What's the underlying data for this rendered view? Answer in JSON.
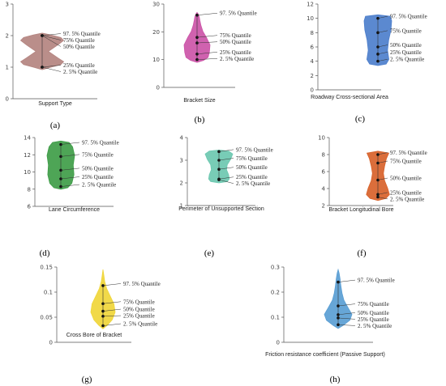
{
  "chart_data": [
    {
      "type": "violin",
      "panel_label": "(a)",
      "xlabel": "Support Type",
      "ylim": [
        0,
        3
      ],
      "yticks": [
        0,
        1,
        2,
        3
      ],
      "color": "#b48480",
      "quantiles": [
        {
          "name": "97. 5% Quantile",
          "value": 2.0
        },
        {
          "name": "75% Quantile",
          "value": 2.0
        },
        {
          "name": "50% Quantile",
          "value": 2.0
        },
        {
          "name": "25% Quantile",
          "value": 1.0
        },
        {
          "name": "2. 5% Quantile",
          "value": 1.0
        }
      ]
    },
    {
      "type": "violin",
      "panel_label": "(b)",
      "xlabel": "Bracket Size",
      "ylim": [
        0,
        30
      ],
      "yticks": [
        0,
        10,
        20,
        30
      ],
      "color": "#cc55a8",
      "quantiles": [
        {
          "name": "97. 5% Quantile",
          "value": 26
        },
        {
          "name": "75% Quantile",
          "value": 18
        },
        {
          "name": "50% Quantile",
          "value": 16
        },
        {
          "name": "25% Quantile",
          "value": 12
        },
        {
          "name": "2. 5% Quantile",
          "value": 10
        }
      ]
    },
    {
      "type": "violin",
      "panel_label": "(c)",
      "xlabel": "Roadway Cross-sectional Area",
      "ylim": [
        0,
        12
      ],
      "yticks": [
        0,
        2,
        4,
        6,
        8,
        10,
        12
      ],
      "color": "#4d7fcc",
      "quantiles": [
        {
          "name": "97. 5% Quantile",
          "value": 10
        },
        {
          "name": "75% Quantile",
          "value": 8
        },
        {
          "name": "50% Quantile",
          "value": 6
        },
        {
          "name": "25% Quantile",
          "value": 5
        },
        {
          "name": "2. 5% Quantile",
          "value": 4
        }
      ]
    },
    {
      "type": "violin",
      "panel_label": "(d)",
      "xlabel": "Lane Circumference",
      "ylim": [
        6,
        14
      ],
      "yticks": [
        6,
        8,
        10,
        12,
        14
      ],
      "color": "#3f9d48",
      "quantiles": [
        {
          "name": "97. 5% Quantile",
          "value": 13.2
        },
        {
          "name": "75% Quantile",
          "value": 11.8
        },
        {
          "name": "50% Quantile",
          "value": 10.2
        },
        {
          "name": "25% Quantile",
          "value": 9.2
        },
        {
          "name": "2. 5% Quantile",
          "value": 8.3
        }
      ]
    },
    {
      "type": "violin",
      "panel_label": "(e)",
      "xlabel": "Perimeter of Unsupported Section",
      "ylim": [
        1,
        4
      ],
      "yticks": [
        1,
        2,
        3,
        4
      ],
      "color": "#6cc8b0",
      "quantiles": [
        {
          "name": "97. 5% Quantile",
          "value": 3.38
        },
        {
          "name": "75% Quantile",
          "value": 3.0
        },
        {
          "name": "50% Quantile",
          "value": 2.6
        },
        {
          "name": "25% Quantile",
          "value": 2.17
        },
        {
          "name": "2. 5% Quantile",
          "value": 2.14
        }
      ]
    },
    {
      "type": "violin",
      "panel_label": "(f)",
      "xlabel": "Bracket Longitudinal Bore",
      "ylim": [
        2,
        10
      ],
      "yticks": [
        2,
        4,
        6,
        8,
        10
      ],
      "color": "#d8622a",
      "quantiles": [
        {
          "name": "97. 5% Quantile",
          "value": 8.0
        },
        {
          "name": "75% Quantile",
          "value": 7.0
        },
        {
          "name": "50% Quantile",
          "value": 5.0
        },
        {
          "name": "25% Quantile",
          "value": 3.3
        },
        {
          "name": "2. 5% Quantile",
          "value": 3.0
        }
      ]
    },
    {
      "type": "violin",
      "panel_label": "(g)",
      "xlabel": "Cross Bore of Bracket",
      "ylim": [
        0,
        0.15
      ],
      "yticks": [
        0,
        0.05,
        0.1,
        0.15
      ],
      "color": "#f0d63a",
      "quantiles": [
        {
          "name": "97. 5% Quantile",
          "value": 0.113
        },
        {
          "name": "75% Quantile",
          "value": 0.077
        },
        {
          "name": "50% Quantile",
          "value": 0.062
        },
        {
          "name": "25% Quantile",
          "value": 0.052
        },
        {
          "name": "2. 5% Quantile",
          "value": 0.033
        }
      ]
    },
    {
      "type": "violin",
      "panel_label": "(h)",
      "xlabel": "Friction resistance coefficient (Passive Support)",
      "ylim": [
        0,
        0.3
      ],
      "yticks": [
        0,
        0.1,
        0.2,
        0.3
      ],
      "color": "#5a9ed4",
      "quantiles": [
        {
          "name": "97. 5% Quantile",
          "value": 0.24
        },
        {
          "name": "75% Quantile",
          "value": 0.145
        },
        {
          "name": "50% Quantile",
          "value": 0.11
        },
        {
          "name": "25% Quantile",
          "value": 0.097
        },
        {
          "name": "2. 5% Quantile",
          "value": 0.07
        }
      ]
    }
  ]
}
